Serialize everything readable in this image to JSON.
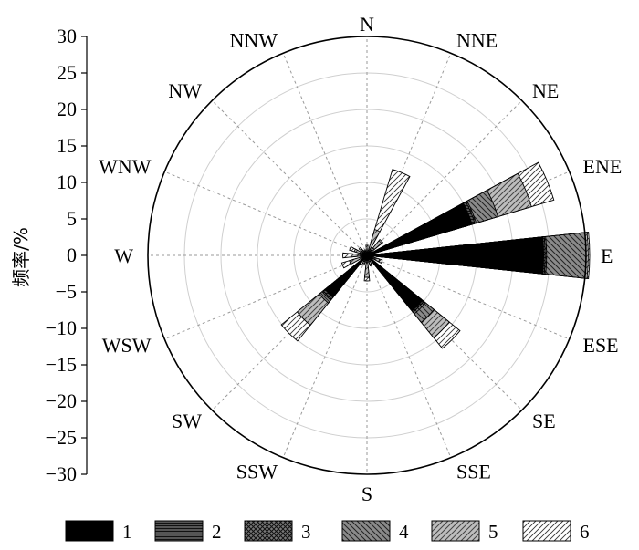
{
  "chart_data": {
    "type": "wind-rose",
    "ylabel": "频率/%",
    "ylim": [
      -30,
      30
    ],
    "yticks": [
      "30",
      "25",
      "20",
      "15",
      "10",
      "5",
      "0",
      "−5",
      "−10",
      "−15",
      "−20",
      "−25",
      "−30"
    ],
    "ring_step": 5,
    "directions": [
      "N",
      "NNE",
      "NE",
      "ENE",
      "E",
      "ESE",
      "SE",
      "SSE",
      "S",
      "SSW",
      "SW",
      "WSW",
      "W",
      "WNW",
      "NW",
      "NNW"
    ],
    "legend": [
      "1",
      "2",
      "3",
      "4",
      "5",
      "6"
    ],
    "series_fills": [
      "solid-black",
      "horizontal-lines-dark",
      "crosshatch-dark",
      "back-diagonal",
      "forward-diagonal",
      "light-diagonal"
    ],
    "cumulative": [
      {
        "dir": "N",
        "v": [
          0.1,
          0.1,
          0.1,
          0.2,
          0.3,
          1.4
        ]
      },
      {
        "dir": "NNE",
        "v": [
          0.1,
          0.2,
          0.3,
          0.8,
          3.7,
          12.3
        ]
      },
      {
        "dir": "NE",
        "v": [
          0.3,
          0.6,
          0.9,
          1.3,
          2.6,
          2.8
        ]
      },
      {
        "dir": "ENE",
        "v": [
          15.0,
          15.4,
          15.6,
          18.7,
          23.5,
          26.7
        ]
      },
      {
        "dir": "E",
        "v": [
          24.2,
          24.4,
          24.6,
          30.0,
          30.3,
          30.5
        ]
      },
      {
        "dir": "ESE",
        "v": [
          0.3,
          0.6,
          0.8,
          1.2,
          1.8,
          2.2
        ]
      },
      {
        "dir": "SE",
        "v": [
          9.8,
          10.0,
          10.3,
          11.8,
          14.5,
          16.4
        ]
      },
      {
        "dir": "SSE",
        "v": [
          0.3,
          0.5,
          0.6,
          0.9,
          1.3,
          1.5
        ]
      },
      {
        "dir": "S",
        "v": [
          0.5,
          0.6,
          0.7,
          1.0,
          3.0,
          3.5
        ]
      },
      {
        "dir": "SSW",
        "v": [
          0.3,
          0.5,
          0.6,
          0.9,
          1.2,
          1.4
        ]
      },
      {
        "dir": "SW",
        "v": [
          7.4,
          7.7,
          7.9,
          8.4,
          12.3,
          15.1
        ]
      },
      {
        "dir": "WSW",
        "v": [
          0.3,
          0.5,
          0.6,
          0.9,
          2.5,
          3.6
        ]
      },
      {
        "dir": "W",
        "v": [
          0.2,
          0.4,
          0.6,
          0.9,
          2.2,
          3.3
        ]
      },
      {
        "dir": "WNW",
        "v": [
          0.3,
          0.5,
          0.7,
          1.0,
          1.8,
          2.5
        ]
      },
      {
        "dir": "NW",
        "v": [
          0.2,
          0.4,
          0.5,
          0.7,
          1.1,
          1.4
        ]
      },
      {
        "dir": "NNW",
        "v": [
          0.1,
          0.2,
          0.3,
          0.4,
          0.6,
          0.8
        ]
      }
    ]
  }
}
